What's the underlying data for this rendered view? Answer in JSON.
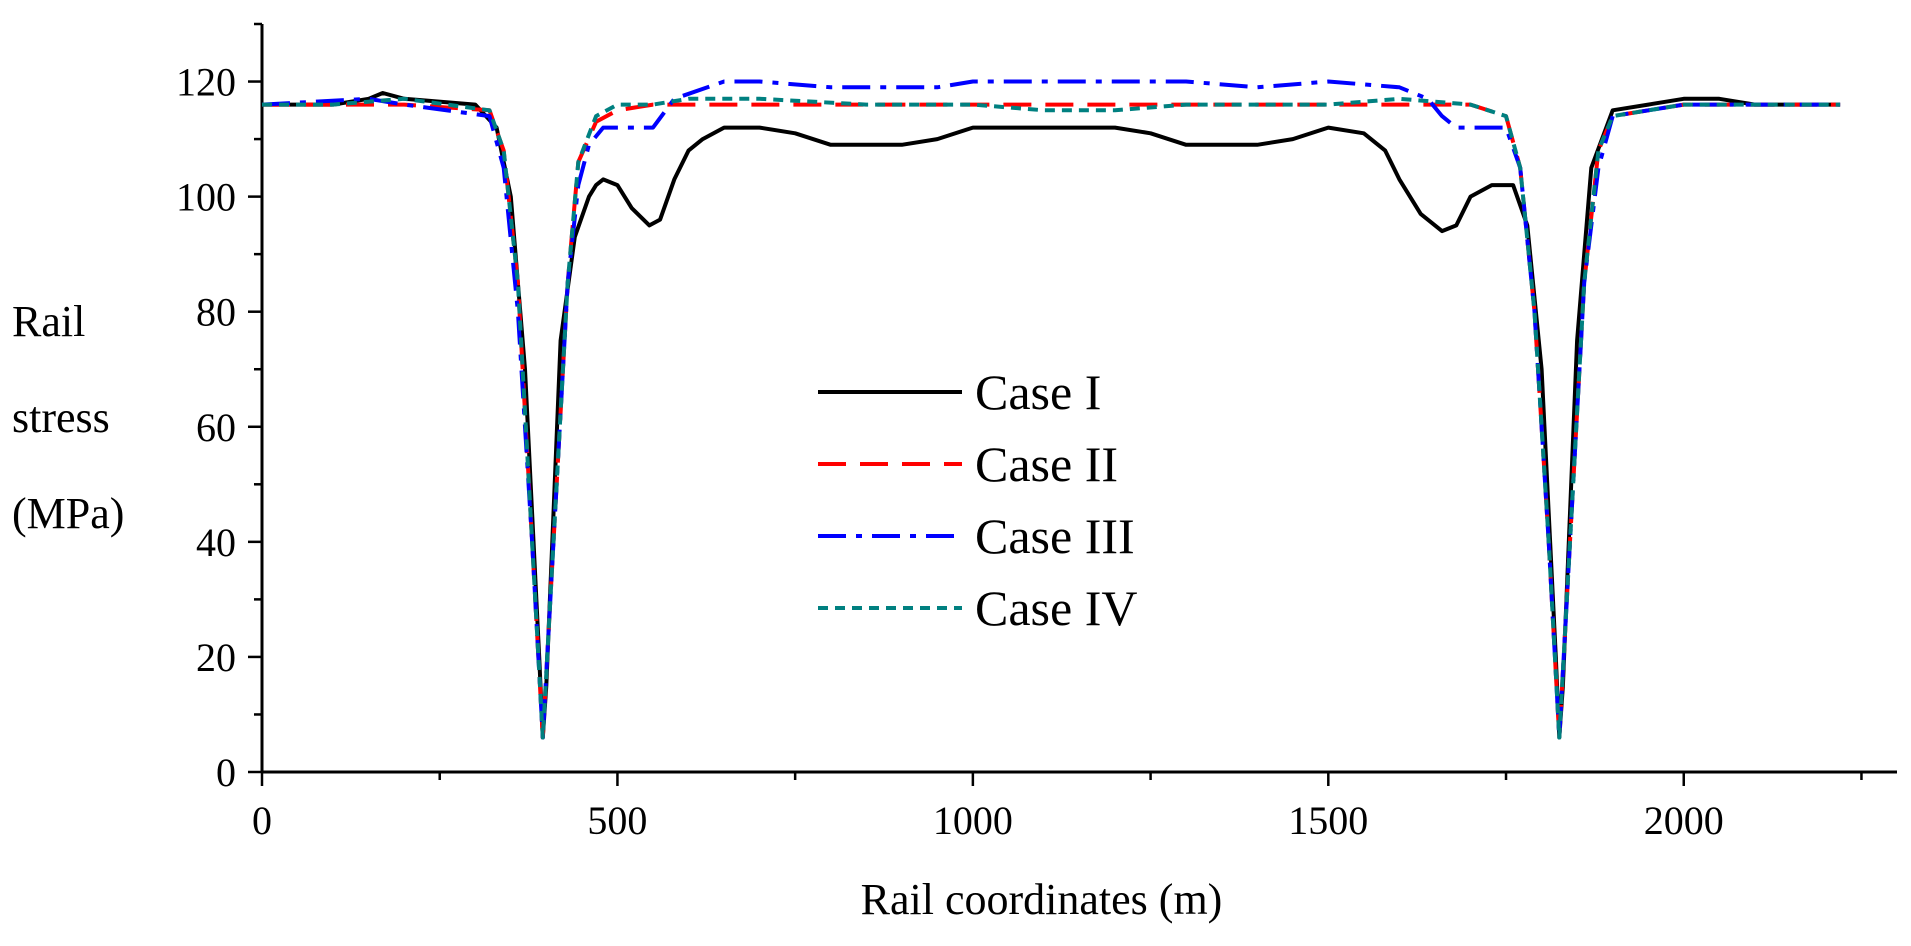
{
  "chart_data": {
    "type": "line",
    "title": "",
    "xlabel": "Rail coordinates (m)",
    "ylabel_lines": [
      "Rail",
      "stress",
      "(MPa)"
    ],
    "xlim": [
      0,
      2300
    ],
    "ylim": [
      0,
      130
    ],
    "xticks": [
      0,
      500,
      1000,
      1500,
      2000
    ],
    "yticks": [
      0,
      20,
      40,
      60,
      80,
      100,
      120
    ],
    "legend_position": "center",
    "series": [
      {
        "name": "Case I",
        "color": "#000000",
        "dash": "solid",
        "x": [
          0,
          100,
          150,
          170,
          200,
          300,
          330,
          350,
          370,
          380,
          390,
          395,
          400,
          410,
          420,
          440,
          460,
          470,
          480,
          500,
          520,
          545,
          560,
          580,
          600,
          620,
          650,
          700,
          750,
          800,
          900,
          950,
          1000,
          1100,
          1200,
          1250,
          1300,
          1400,
          1450,
          1500,
          1550,
          1580,
          1600,
          1630,
          1660,
          1680,
          1700,
          1730,
          1760,
          1780,
          1800,
          1810,
          1820,
          1825,
          1830,
          1840,
          1850,
          1870,
          1900,
          1950,
          2000,
          2050,
          2100,
          2220
        ],
        "y": [
          116,
          116,
          117,
          118,
          117,
          116,
          112,
          100,
          70,
          45,
          20,
          6,
          15,
          45,
          75,
          93,
          100,
          102,
          103,
          102,
          98,
          95,
          96,
          103,
          108,
          110,
          112,
          112,
          111,
          109,
          109,
          110,
          112,
          112,
          112,
          111,
          109,
          109,
          110,
          112,
          111,
          108,
          103,
          97,
          94,
          95,
          100,
          102,
          102,
          95,
          70,
          45,
          20,
          6,
          15,
          45,
          75,
          105,
          115,
          116,
          117,
          117,
          116,
          116
        ]
      },
      {
        "name": "Case II",
        "color": "#ff0000",
        "dash": "dashed",
        "x": [
          0,
          100,
          200,
          320,
          340,
          360,
          380,
          395,
          410,
          430,
          445,
          470,
          500,
          550,
          650,
          800,
          1000,
          1200,
          1400,
          1600,
          1700,
          1750,
          1770,
          1790,
          1810,
          1825,
          1840,
          1860,
          1880,
          1900,
          2000,
          2220
        ],
        "y": [
          116,
          116,
          116,
          115,
          108,
          85,
          40,
          6,
          40,
          85,
          106,
          113,
          115,
          116,
          116,
          116,
          116,
          116,
          116,
          116,
          116,
          114,
          105,
          80,
          40,
          6,
          40,
          85,
          108,
          114,
          116,
          116
        ]
      },
      {
        "name": "Case III",
        "color": "#0000ff",
        "dash": "dashdot",
        "x": [
          0,
          150,
          200,
          320,
          340,
          360,
          380,
          395,
          410,
          430,
          445,
          460,
          480,
          550,
          580,
          650,
          700,
          800,
          950,
          1000,
          1200,
          1300,
          1400,
          1500,
          1600,
          1640,
          1660,
          1680,
          1750,
          1770,
          1790,
          1810,
          1825,
          1840,
          1860,
          1880,
          1900,
          2000,
          2220
        ],
        "y": [
          116,
          117,
          116,
          114,
          105,
          80,
          40,
          6,
          40,
          85,
          102,
          109,
          112,
          112,
          117,
          120,
          120,
          119,
          119,
          120,
          120,
          120,
          119,
          120,
          119,
          117,
          114,
          112,
          112,
          105,
          80,
          40,
          6,
          40,
          85,
          105,
          114,
          116,
          116
        ]
      },
      {
        "name": "Case IV",
        "color": "#008080",
        "dash": "dotted",
        "x": [
          0,
          100,
          200,
          320,
          340,
          360,
          380,
          395,
          410,
          430,
          445,
          470,
          500,
          550,
          600,
          700,
          850,
          1000,
          1100,
          1200,
          1300,
          1400,
          1500,
          1600,
          1700,
          1750,
          1770,
          1790,
          1810,
          1825,
          1840,
          1860,
          1880,
          1900,
          2000,
          2220
        ],
        "y": [
          116,
          116,
          117,
          115,
          108,
          85,
          40,
          6,
          40,
          85,
          106,
          114,
          116,
          116,
          117,
          117,
          116,
          116,
          115,
          115,
          116,
          116,
          116,
          117,
          116,
          114,
          105,
          80,
          40,
          6,
          40,
          85,
          108,
          114,
          116,
          116
        ]
      }
    ]
  }
}
